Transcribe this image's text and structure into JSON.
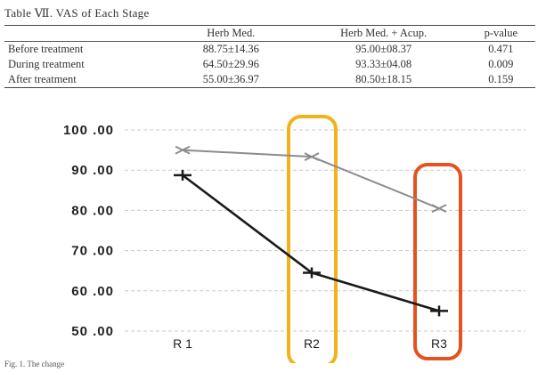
{
  "table": {
    "caption": "Table Ⅶ. VAS of Each Stage",
    "headers": [
      "",
      "Herb Med.",
      "Herb Med. + Acup.",
      "p-value"
    ],
    "rows": [
      [
        "Before treatment",
        "88.75±14.36",
        "95.00±08.37",
        "0.471"
      ],
      [
        "During treatment",
        "64.50±29.96",
        "93.33±04.08",
        "0.009"
      ],
      [
        "After treatment",
        "55.00±36.97",
        "80.50±18.15",
        "0.159"
      ]
    ]
  },
  "chart_data": {
    "type": "line",
    "categories": [
      "R 1",
      "R2",
      "R3"
    ],
    "ylim": [
      50,
      100
    ],
    "yticks": [
      "100 .00",
      "90 .00",
      "80 .00",
      "70 .00",
      "60 .00",
      "50 .00"
    ],
    "ytick_values": [
      100,
      90,
      80,
      70,
      60,
      50
    ],
    "grid": true,
    "series": [
      {
        "values": [
          95.0,
          93.33,
          80.5
        ],
        "marker": "x",
        "color": "#8c8c8c"
      },
      {
        "values": [
          88.75,
          64.5,
          55.0
        ],
        "marker": "+",
        "color": "#1a1a1a"
      }
    ],
    "annotations": [
      {
        "category": "R2",
        "shape": "rounded-rectangle",
        "color": "#f2b21b"
      },
      {
        "category": "R3",
        "shape": "rounded-rectangle",
        "color": "#e4531f"
      }
    ]
  },
  "figure_caption": "Fig. 1. The change"
}
